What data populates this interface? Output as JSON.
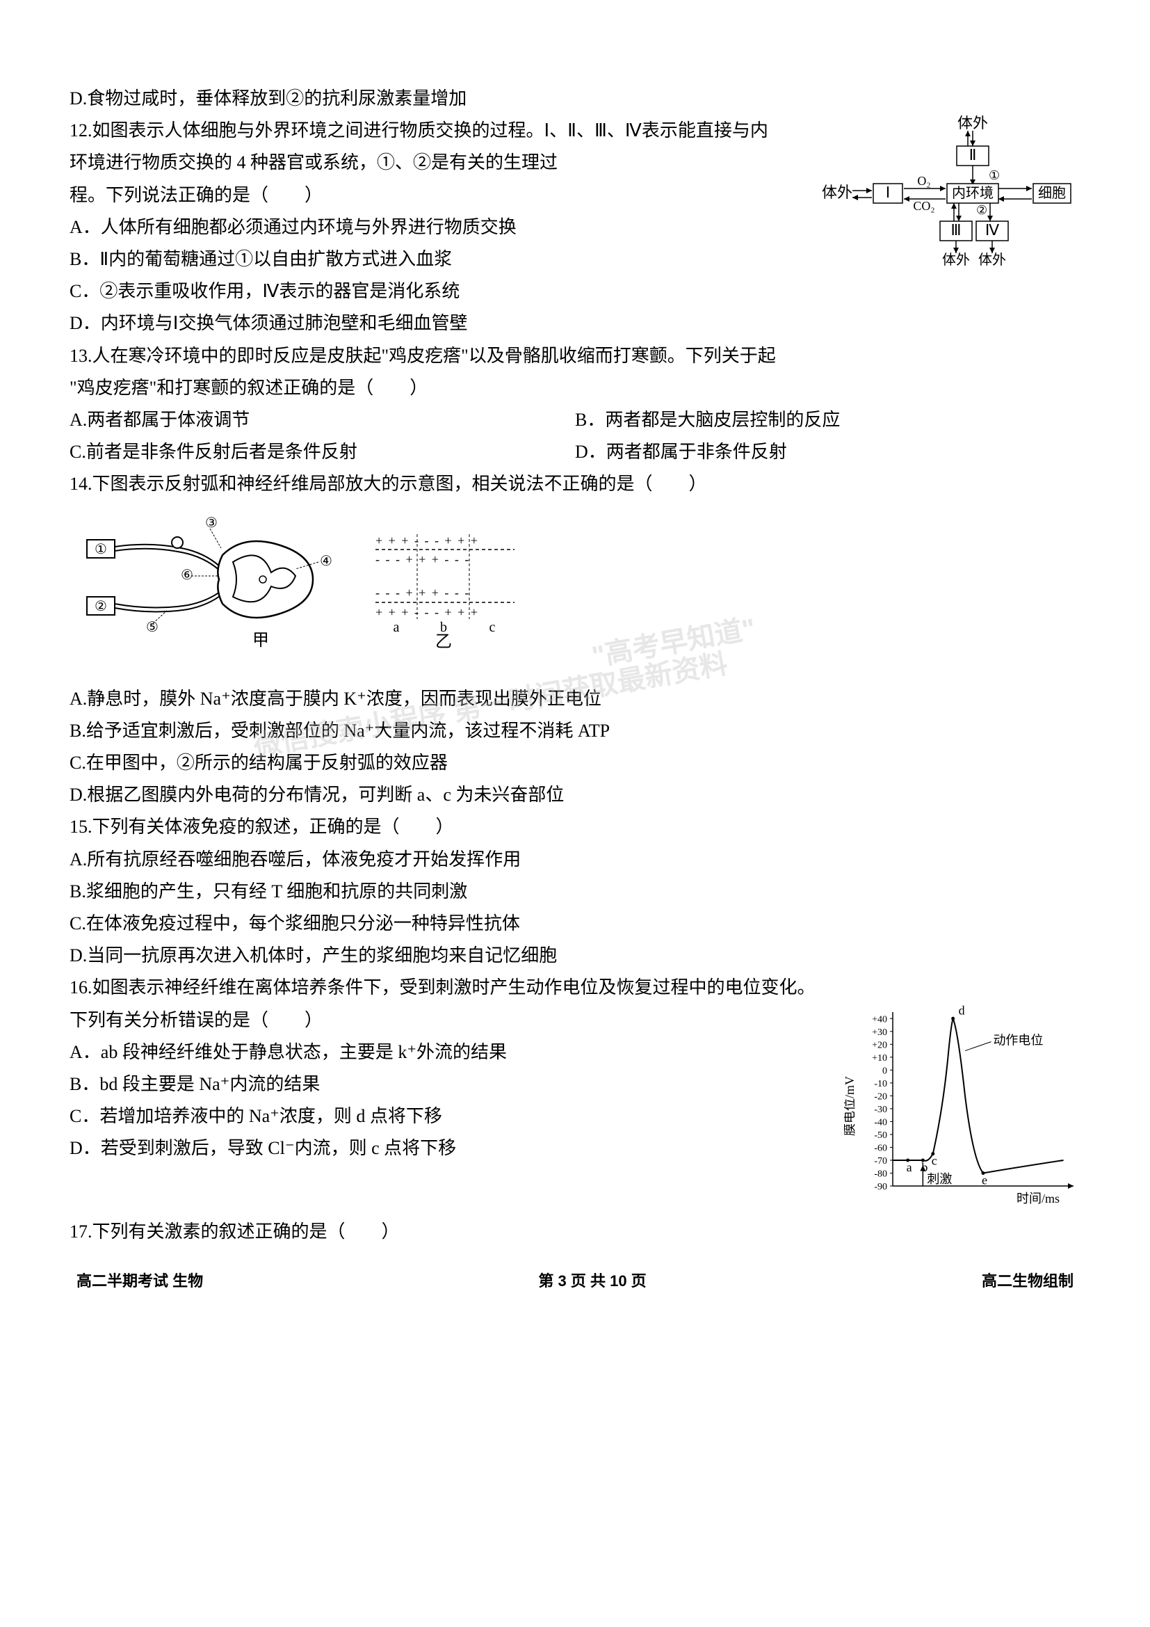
{
  "q11d": "D.食物过咸时，垂体释放到②的抗利尿激素量增加",
  "q12": {
    "stem1": "12.如图表示人体细胞与外界环境之间进行物质交换的过程。Ⅰ、Ⅱ、Ⅲ、Ⅳ表示能直接与内",
    "stem2": "环境进行物质交换的 4 种器官或系统，①、②是有关的生理过",
    "stem3": "程。下列说法正确的是（　　）",
    "a": "A．人体所有细胞都必须通过内环境与外界进行物质交换",
    "b": "B．Ⅱ内的葡萄糖通过①以自由扩散方式进入血浆",
    "c": "C．②表示重吸收作用，Ⅳ表示的器官是消化系统",
    "d": "D．内环境与Ⅰ交换气体须通过肺泡壁和毛细血管壁",
    "diagram": {
      "tiwai": "体外",
      "I": "Ⅰ",
      "II": "Ⅱ",
      "III": "Ⅲ",
      "IV": "Ⅳ",
      "neihuanjing": "内环境",
      "xibao": "细胞",
      "O2": "O₂",
      "CO2": "CO₂",
      "circ1": "①",
      "circ2": "②"
    }
  },
  "q13": {
    "stem1": "13.人在寒冷环境中的即时反应是皮肤起\"鸡皮疙瘩\"以及骨骼肌收缩而打寒颤。下列关于起",
    "stem2": "\"鸡皮疙瘩\"和打寒颤的叙述正确的是（　　）",
    "a": "A.两者都属于体液调节",
    "b": "B．两者都是大脑皮层控制的反应",
    "c": "C.前者是非条件反射后者是条件反射",
    "d": "D．两者都属于非条件反射"
  },
  "q14": {
    "stem": "14.下图表示反射弧和神经纤维局部放大的示意图，相关说法不正确的是（　　）",
    "a": "A.静息时，膜外 Na⁺浓度高于膜内 K⁺浓度，因而表现出膜外正电位",
    "b": "B.给予适宜刺激后，受刺激部位的 Na⁺大量内流，该过程不消耗 ATP",
    "c": "C.在甲图中，②所示的结构属于反射弧的效应器",
    "d": "D.根据乙图膜内外电荷的分布情况，可判断 a、c 为未兴奋部位",
    "labels": {
      "l1": "①",
      "l2": "②",
      "l3": "③",
      "l4": "④",
      "l5": "⑤",
      "l6": "⑥",
      "jia": "甲",
      "yi": "乙",
      "a": "a",
      "b": "b",
      "c": "c"
    }
  },
  "q15": {
    "stem": "15.下列有关体液免疫的叙述，正确的是（　　）",
    "a": "A.所有抗原经吞噬细胞吞噬后，体液免疫才开始发挥作用",
    "b": "B.浆细胞的产生，只有经 T 细胞和抗原的共同刺激",
    "c": "C.在体液免疫过程中，每个浆细胞只分泌一种特异性抗体",
    "d": "D.当同一抗原再次进入机体时，产生的浆细胞均来自记忆细胞"
  },
  "q16": {
    "stem1": "16.如图表示神经纤维在离体培养条件下，受到刺激时产生动作电位及恢复过程中的电位变化。",
    "stem2": "下列有关分析错误的是（　　）",
    "a": "A．ab 段神经纤维处于静息状态，主要是 k⁺外流的结果",
    "b": "B．bd 段主要是 Na⁺内流的结果",
    "c": "C．若增加培养液中的 Na⁺浓度，则 d 点将下移",
    "d": "D．若受到刺激后，导致 Cl⁻内流，则 c 点将下移",
    "chart": {
      "type": "line",
      "ylabel": "膜电位/mV",
      "xlabel": "时间/ms",
      "annotation": "动作电位",
      "stimulus": "刺激",
      "yticks": [
        40,
        30,
        20,
        10,
        0,
        -10,
        -20,
        -30,
        -40,
        -50,
        -60,
        -70,
        -80,
        -90
      ],
      "ylim": [
        -90,
        45
      ],
      "points": {
        "a": {
          "x": 15,
          "y": -70
        },
        "b": {
          "x": 30,
          "y": -70
        },
        "c": {
          "x": 40,
          "y": -65
        },
        "d": {
          "x": 60,
          "y": 40
        },
        "e": {
          "x": 90,
          "y": -80
        }
      },
      "line_color": "#000000",
      "background_color": "#ffffff",
      "axis_color": "#000000",
      "fontsize": 18
    }
  },
  "q17": {
    "stem": "17.下列有关激素的叙述正确的是（　　）"
  },
  "footer": {
    "left": "高二半期考试 生物",
    "center": "第 3 页 共 10 页",
    "right": "高二生物组制"
  },
  "watermark1": "\"高考早知道\"",
  "watermark2": "微信搜索小程序  第一时间获取最新资料"
}
